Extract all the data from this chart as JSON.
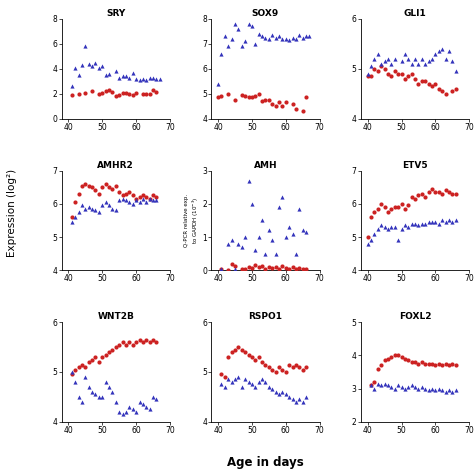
{
  "panels": [
    {
      "title": "SRY",
      "blue_x": [
        41,
        42,
        43,
        44,
        45,
        46,
        47,
        48,
        49,
        50,
        51,
        52,
        54,
        55,
        56,
        57,
        58,
        59,
        60,
        61,
        62,
        63,
        64,
        65,
        66,
        67
      ],
      "blue_y": [
        2.6,
        4.1,
        3.5,
        4.3,
        5.8,
        4.4,
        4.2,
        4.5,
        4.1,
        4.2,
        3.5,
        3.6,
        3.8,
        3.3,
        3.4,
        3.4,
        3.3,
        3.7,
        3.2,
        3.1,
        3.2,
        3.1,
        3.3,
        3.3,
        3.15,
        3.2
      ],
      "red_x": [
        41,
        43,
        45,
        47,
        49,
        50,
        51,
        52,
        53,
        54,
        55,
        56,
        57,
        58,
        59,
        60,
        62,
        63,
        64,
        65,
        66
      ],
      "red_y": [
        1.9,
        2.0,
        2.1,
        2.2,
        1.95,
        2.1,
        2.2,
        2.3,
        2.15,
        1.85,
        1.9,
        2.05,
        2.1,
        1.95,
        1.9,
        2.05,
        1.95,
        2.0,
        1.95,
        2.3,
        2.15
      ],
      "ylim": [
        0,
        8
      ],
      "yticks": [
        0,
        2,
        4,
        6,
        8
      ]
    },
    {
      "title": "SOX9",
      "blue_x": [
        40,
        41,
        42,
        43,
        44,
        45,
        46,
        47,
        48,
        49,
        50,
        51,
        52,
        53,
        54,
        55,
        56,
        57,
        58,
        59,
        60,
        61,
        62,
        63,
        64,
        65,
        66,
        67
      ],
      "blue_y": [
        5.4,
        6.6,
        7.3,
        6.9,
        7.2,
        7.8,
        7.6,
        6.9,
        7.1,
        7.8,
        7.7,
        7.0,
        7.4,
        7.3,
        7.25,
        7.2,
        7.35,
        7.25,
        7.3,
        7.2,
        7.2,
        7.15,
        7.25,
        7.2,
        7.35,
        7.25,
        7.3,
        7.3
      ],
      "red_x": [
        40,
        41,
        43,
        45,
        47,
        48,
        49,
        50,
        51,
        52,
        53,
        54,
        55,
        56,
        57,
        58,
        59,
        60,
        62,
        63,
        65,
        66
      ],
      "red_y": [
        4.85,
        4.9,
        5.0,
        4.75,
        4.95,
        4.9,
        4.85,
        4.85,
        4.9,
        5.0,
        4.7,
        4.75,
        4.75,
        4.6,
        4.5,
        4.65,
        4.5,
        4.65,
        4.6,
        4.4,
        4.3,
        4.85
      ],
      "ylim": [
        4,
        8
      ],
      "yticks": [
        4,
        5,
        6,
        7,
        8
      ]
    },
    {
      "title": "GLI1",
      "blue_x": [
        40,
        41,
        42,
        43,
        44,
        45,
        46,
        47,
        48,
        50,
        51,
        52,
        53,
        54,
        55,
        56,
        57,
        58,
        59,
        60,
        61,
        62,
        63,
        64,
        65,
        66
      ],
      "blue_y": [
        4.9,
        5.05,
        5.2,
        5.3,
        5.1,
        5.15,
        5.2,
        5.1,
        5.2,
        5.15,
        5.3,
        5.2,
        5.1,
        5.2,
        5.1,
        5.2,
        5.1,
        5.15,
        5.2,
        5.3,
        5.35,
        5.4,
        5.2,
        5.35,
        5.15,
        4.95
      ],
      "red_x": [
        40,
        41,
        42,
        43,
        44,
        45,
        46,
        47,
        48,
        49,
        50,
        51,
        52,
        53,
        54,
        55,
        56,
        57,
        58,
        59,
        60,
        61,
        62,
        63,
        65,
        66
      ],
      "red_y": [
        4.85,
        4.85,
        5.0,
        4.95,
        5.05,
        5.0,
        4.9,
        4.85,
        4.95,
        4.9,
        4.9,
        4.8,
        4.85,
        4.9,
        4.8,
        4.7,
        4.75,
        4.75,
        4.7,
        4.65,
        4.7,
        4.6,
        4.55,
        4.5,
        4.55,
        4.6
      ],
      "ylim": [
        4,
        6
      ],
      "yticks": [
        4,
        5,
        6
      ]
    },
    {
      "title": "AMHR2",
      "blue_x": [
        41,
        42,
        43,
        44,
        45,
        46,
        47,
        48,
        49,
        50,
        51,
        52,
        53,
        54,
        55,
        56,
        57,
        58,
        59,
        60,
        61,
        62,
        63,
        64,
        65,
        66
      ],
      "blue_y": [
        5.45,
        5.6,
        5.75,
        5.95,
        5.85,
        5.9,
        5.85,
        5.8,
        5.75,
        5.95,
        6.05,
        5.95,
        5.85,
        5.8,
        6.1,
        6.15,
        6.1,
        6.05,
        6.0,
        6.1,
        6.05,
        6.15,
        6.05,
        6.15,
        6.1,
        6.1
      ],
      "red_x": [
        41,
        42,
        43,
        44,
        45,
        46,
        47,
        48,
        49,
        50,
        51,
        52,
        53,
        54,
        55,
        56,
        57,
        58,
        59,
        60,
        61,
        62,
        63,
        64,
        65,
        66
      ],
      "red_y": [
        5.6,
        6.05,
        6.3,
        6.55,
        6.6,
        6.55,
        6.5,
        6.4,
        6.3,
        6.5,
        6.6,
        6.5,
        6.45,
        6.55,
        6.35,
        6.25,
        6.3,
        6.35,
        6.25,
        6.15,
        6.2,
        6.25,
        6.2,
        6.15,
        6.25,
        6.2
      ],
      "ylim": [
        4,
        7
      ],
      "yticks": [
        4,
        5,
        6,
        7
      ]
    },
    {
      "title": "AMH",
      "blue_x": [
        41,
        43,
        44,
        45,
        46,
        47,
        48,
        49,
        50,
        51,
        52,
        53,
        54,
        55,
        56,
        57,
        58,
        59,
        60,
        61,
        62,
        63,
        64,
        65,
        66
      ],
      "blue_y": [
        0.05,
        0.8,
        0.9,
        0.05,
        0.8,
        0.7,
        1.0,
        2.7,
        2.0,
        0.6,
        1.0,
        1.5,
        0.5,
        1.2,
        0.9,
        0.5,
        1.9,
        2.2,
        1.0,
        1.3,
        1.1,
        0.5,
        1.85,
        1.2,
        1.15
      ],
      "red_x": [
        41,
        43,
        44,
        45,
        47,
        48,
        49,
        50,
        51,
        52,
        53,
        54,
        55,
        56,
        57,
        58,
        59,
        60,
        61,
        62,
        63,
        64,
        65,
        66
      ],
      "red_y": [
        0.05,
        0.02,
        0.2,
        0.12,
        0.05,
        0.05,
        0.1,
        0.08,
        0.15,
        0.1,
        0.12,
        0.05,
        0.1,
        0.08,
        0.1,
        0.05,
        0.12,
        0.08,
        0.05,
        0.1,
        0.05,
        0.08,
        0.05,
        0.05
      ],
      "ylim": [
        0,
        3
      ],
      "yticks": [
        0,
        1,
        2,
        3
      ],
      "special_ylabel": true
    },
    {
      "title": "ETV5",
      "blue_x": [
        40,
        41,
        42,
        43,
        44,
        45,
        46,
        47,
        48,
        49,
        50,
        51,
        52,
        53,
        54,
        55,
        56,
        57,
        58,
        59,
        60,
        61,
        62,
        63,
        64,
        65,
        66
      ],
      "blue_y": [
        4.8,
        4.9,
        5.1,
        5.25,
        5.35,
        5.3,
        5.25,
        5.3,
        5.3,
        4.9,
        5.25,
        5.35,
        5.3,
        5.4,
        5.4,
        5.35,
        5.4,
        5.4,
        5.45,
        5.45,
        5.45,
        5.4,
        5.5,
        5.45,
        5.5,
        5.45,
        5.5
      ],
      "red_x": [
        40,
        41,
        42,
        43,
        44,
        45,
        46,
        47,
        48,
        49,
        50,
        51,
        52,
        53,
        54,
        55,
        56,
        57,
        58,
        59,
        60,
        61,
        62,
        63,
        64,
        65,
        66
      ],
      "red_y": [
        5.0,
        5.6,
        5.75,
        5.85,
        6.0,
        5.9,
        5.75,
        5.85,
        5.9,
        5.9,
        6.0,
        5.85,
        5.95,
        6.2,
        6.15,
        6.25,
        6.3,
        6.2,
        6.35,
        6.45,
        6.35,
        6.35,
        6.3,
        6.4,
        6.35,
        6.3,
        6.3
      ],
      "ylim": [
        4,
        7
      ],
      "yticks": [
        4,
        5,
        6,
        7
      ]
    },
    {
      "title": "WNT2B",
      "blue_x": [
        41,
        42,
        43,
        44,
        45,
        46,
        47,
        48,
        49,
        50,
        51,
        52,
        53,
        54,
        55,
        56,
        57,
        58,
        59,
        60,
        61,
        62,
        63,
        64,
        65,
        66
      ],
      "blue_y": [
        5.0,
        4.8,
        4.5,
        4.4,
        4.9,
        4.7,
        4.6,
        4.55,
        4.5,
        4.5,
        4.8,
        4.7,
        4.6,
        4.4,
        4.2,
        4.15,
        4.2,
        4.3,
        4.25,
        4.2,
        4.4,
        4.35,
        4.3,
        4.25,
        4.5,
        4.45
      ],
      "red_x": [
        41,
        42,
        43,
        44,
        45,
        46,
        47,
        48,
        49,
        50,
        51,
        52,
        53,
        54,
        55,
        56,
        57,
        58,
        59,
        60,
        61,
        62,
        63,
        64,
        65,
        66
      ],
      "red_y": [
        4.95,
        5.05,
        5.1,
        5.15,
        5.1,
        5.2,
        5.25,
        5.3,
        5.2,
        5.3,
        5.35,
        5.4,
        5.45,
        5.5,
        5.55,
        5.6,
        5.55,
        5.6,
        5.55,
        5.6,
        5.65,
        5.6,
        5.65,
        5.6,
        5.65,
        5.6
      ],
      "ylim": [
        4,
        6
      ],
      "yticks": [
        4,
        5,
        6
      ]
    },
    {
      "title": "RSPO1",
      "blue_x": [
        41,
        42,
        43,
        44,
        45,
        46,
        47,
        48,
        49,
        50,
        51,
        52,
        53,
        54,
        55,
        56,
        57,
        58,
        59,
        60,
        61,
        62,
        63,
        64,
        65,
        66
      ],
      "blue_y": [
        4.75,
        4.7,
        4.85,
        4.8,
        4.85,
        4.9,
        4.7,
        4.85,
        4.8,
        4.75,
        4.7,
        4.8,
        4.85,
        4.8,
        4.7,
        4.65,
        4.6,
        4.55,
        4.6,
        4.55,
        4.5,
        4.45,
        4.4,
        4.45,
        4.4,
        4.5
      ],
      "red_x": [
        41,
        42,
        43,
        44,
        45,
        46,
        47,
        48,
        49,
        50,
        51,
        52,
        53,
        54,
        55,
        56,
        57,
        58,
        59,
        60,
        61,
        62,
        63,
        64,
        65,
        66
      ],
      "red_y": [
        4.95,
        4.9,
        5.3,
        5.4,
        5.45,
        5.5,
        5.45,
        5.4,
        5.35,
        5.3,
        5.25,
        5.3,
        5.2,
        5.15,
        5.1,
        5.05,
        5.0,
        5.1,
        5.05,
        5.0,
        5.15,
        5.1,
        5.15,
        5.1,
        5.05,
        5.1
      ],
      "ylim": [
        4,
        6
      ],
      "yticks": [
        4,
        5,
        6
      ]
    },
    {
      "title": "FOXL2",
      "blue_x": [
        41,
        42,
        43,
        44,
        45,
        46,
        47,
        48,
        49,
        50,
        51,
        52,
        53,
        54,
        55,
        56,
        57,
        58,
        59,
        60,
        61,
        62,
        63,
        64,
        65,
        66
      ],
      "blue_y": [
        3.1,
        3.0,
        3.15,
        3.1,
        3.15,
        3.1,
        3.05,
        3.0,
        3.1,
        3.05,
        3.0,
        3.05,
        3.1,
        3.05,
        3.0,
        3.05,
        3.0,
        2.95,
        3.0,
        2.95,
        3.0,
        2.95,
        2.9,
        2.95,
        2.9,
        2.95
      ],
      "red_x": [
        41,
        42,
        43,
        44,
        45,
        46,
        47,
        48,
        49,
        50,
        51,
        52,
        53,
        54,
        55,
        56,
        57,
        58,
        59,
        60,
        61,
        62,
        63,
        64,
        65,
        66
      ],
      "red_y": [
        3.1,
        3.2,
        3.6,
        3.7,
        3.85,
        3.9,
        3.95,
        4.0,
        4.0,
        3.95,
        3.9,
        3.85,
        3.8,
        3.8,
        3.75,
        3.8,
        3.75,
        3.75,
        3.75,
        3.7,
        3.75,
        3.7,
        3.75,
        3.7,
        3.75,
        3.7
      ],
      "ylim": [
        2,
        5
      ],
      "yticks": [
        2,
        3,
        4,
        5
      ]
    }
  ],
  "xlim": [
    38,
    70
  ],
  "xticks": [
    40,
    50,
    60,
    70
  ],
  "blue_color": "#3333bb",
  "red_color": "#cc2222",
  "marker_size": 9,
  "ylabel_main": "Expression (log²)",
  "xlabel_main": "Age in days"
}
